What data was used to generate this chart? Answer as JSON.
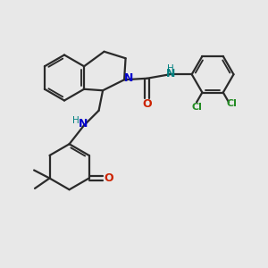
{
  "bg_color": "#e8e8e8",
  "bond_color": "#2a2a2a",
  "N_color": "#0000cc",
  "O_color": "#cc2200",
  "Cl_color": "#228B22",
  "NH_color": "#008080",
  "figsize": [
    3.0,
    3.0
  ],
  "dpi": 100,
  "xlim": [
    0,
    10
  ],
  "ylim": [
    0,
    10
  ]
}
